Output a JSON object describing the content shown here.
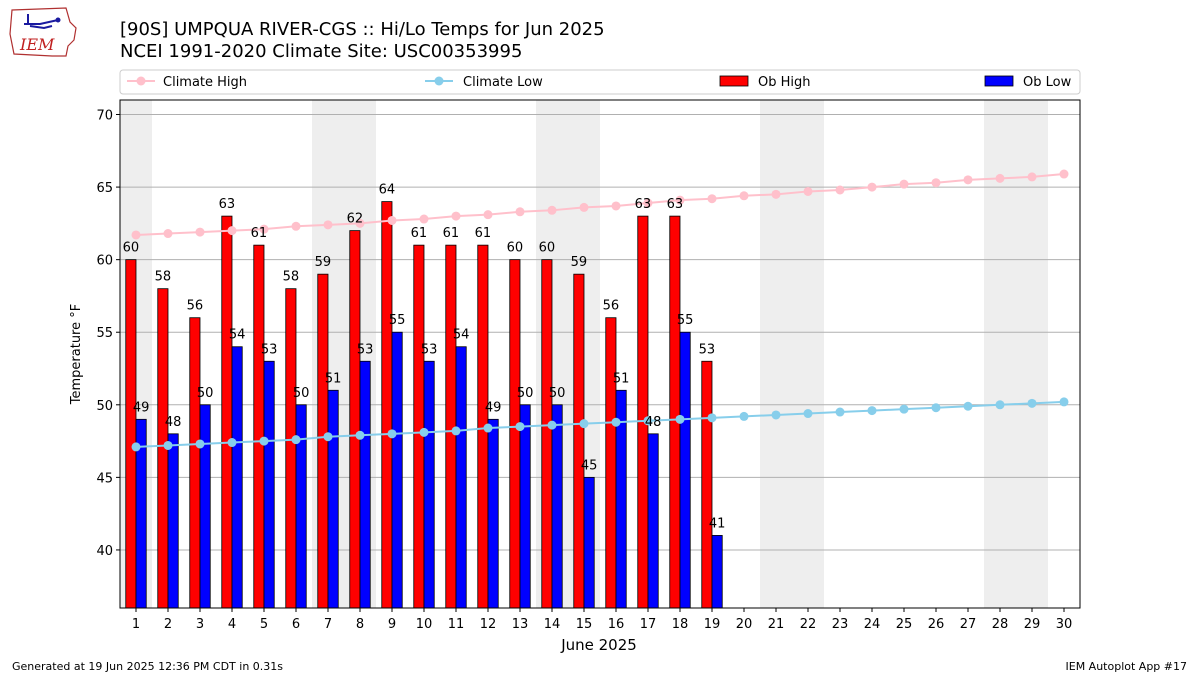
{
  "header": {
    "title": "[90S] UMPQUA RIVER-CGS :: Hi/Lo Temps for Jun 2025",
    "subtitle": "NCEI 1991-2020 Climate Site: USC00353995",
    "logo_text": "IEM"
  },
  "footer": {
    "generated": "Generated at 19 Jun 2025 12:36 PM CDT in 0.31s",
    "app": "IEM Autoplot App #17"
  },
  "chart_data": {
    "type": "bar",
    "xlabel": "June 2025",
    "ylabel": "Temperature °F",
    "xlim": [
      0.5,
      30.5
    ],
    "ylim": [
      36,
      71
    ],
    "yticks": [
      40,
      45,
      50,
      55,
      60,
      65,
      70
    ],
    "grid": "horizontal",
    "legend_placement": "top",
    "days": [
      1,
      2,
      3,
      4,
      5,
      6,
      7,
      8,
      9,
      10,
      11,
      12,
      13,
      14,
      15,
      16,
      17,
      18,
      19,
      20,
      21,
      22,
      23,
      24,
      25,
      26,
      27,
      28,
      29,
      30
    ],
    "weekend_bands": [
      [
        1,
        1
      ],
      [
        7,
        8
      ],
      [
        14,
        15
      ],
      [
        21,
        22
      ],
      [
        28,
        29
      ]
    ],
    "legend": [
      {
        "name": "Climate High",
        "kind": "line",
        "color": "#ffc0cb"
      },
      {
        "name": "Climate Low",
        "kind": "line",
        "color": "#87ceeb"
      },
      {
        "name": "Ob High",
        "kind": "bar",
        "color": "#ff0000"
      },
      {
        "name": "Ob Low",
        "kind": "bar",
        "color": "#0000ff"
      }
    ],
    "series": [
      {
        "name": "Climate High",
        "type": "line",
        "color": "#ffc0cb",
        "values": [
          61.7,
          61.8,
          61.9,
          62.0,
          62.1,
          62.3,
          62.4,
          62.5,
          62.7,
          62.8,
          63.0,
          63.1,
          63.3,
          63.4,
          63.6,
          63.7,
          63.9,
          64.1,
          64.2,
          64.4,
          64.5,
          64.7,
          64.8,
          65.0,
          65.2,
          65.3,
          65.5,
          65.6,
          65.7,
          65.9
        ]
      },
      {
        "name": "Climate Low",
        "type": "line",
        "color": "#87ceeb",
        "values": [
          47.1,
          47.2,
          47.3,
          47.4,
          47.5,
          47.6,
          47.8,
          47.9,
          48.0,
          48.1,
          48.2,
          48.4,
          48.5,
          48.6,
          48.7,
          48.8,
          48.9,
          49.0,
          49.1,
          49.2,
          49.3,
          49.4,
          49.5,
          49.6,
          49.7,
          49.8,
          49.9,
          50.0,
          50.1,
          50.2
        ]
      },
      {
        "name": "Ob High",
        "type": "bar",
        "color": "#ff0000",
        "values": [
          60,
          58,
          56,
          63,
          61,
          58,
          59,
          62,
          64,
          61,
          61,
          61,
          60,
          60,
          59,
          56,
          63,
          63,
          53
        ]
      },
      {
        "name": "Ob Low",
        "type": "bar",
        "color": "#0000ff",
        "values": [
          49,
          48,
          50,
          54,
          53,
          50,
          51,
          53,
          55,
          53,
          54,
          49,
          50,
          50,
          45,
          51,
          48,
          55,
          41
        ]
      }
    ]
  }
}
